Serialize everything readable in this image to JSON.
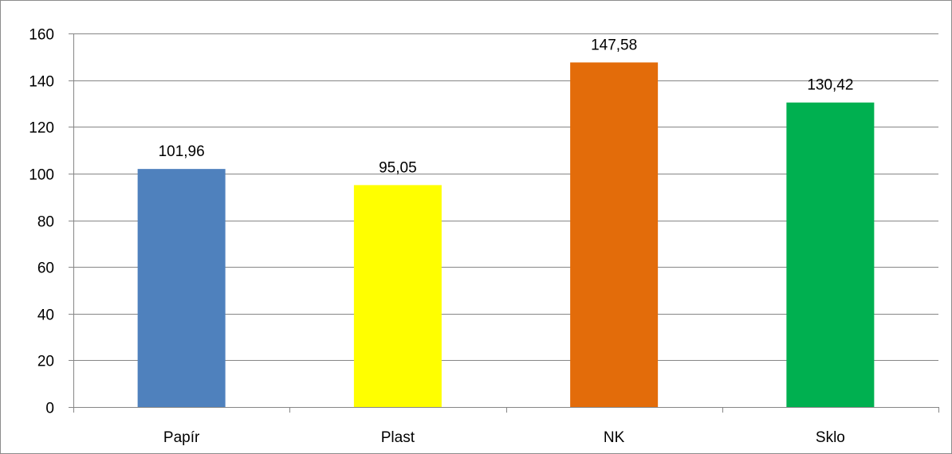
{
  "chart_data": {
    "type": "bar",
    "title": "",
    "xlabel": "",
    "ylabel": "",
    "categories": [
      "Papír",
      "Plast",
      "NK",
      "Sklo"
    ],
    "values": [
      101.96,
      95.05,
      147.58,
      130.42
    ],
    "data_labels": [
      "101,96",
      "95,05",
      "147,58",
      "130,42"
    ],
    "colors": [
      "#4f81bd",
      "#ffff00",
      "#e36c0a",
      "#00b050"
    ],
    "ylim": [
      0,
      160
    ],
    "yticks": [
      0,
      20,
      40,
      60,
      80,
      100,
      120,
      140,
      160
    ],
    "grid": true,
    "legend": "none"
  }
}
